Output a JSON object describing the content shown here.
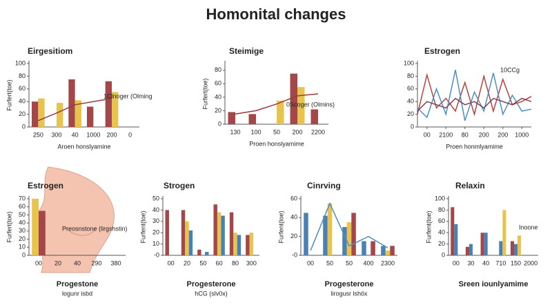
{
  "title": "Homonital changes",
  "chart_data": [
    {
      "type": "bar",
      "title": "Eirgesitiom",
      "ylabel": "Furfert(toe)",
      "xlabel": "Aroen honslyamine",
      "annotation": "1Clnoger (Olming",
      "categories": [
        "250",
        "300",
        "40",
        "1000",
        "200",
        "0"
      ],
      "ylim": [
        0,
        100
      ],
      "yticks": [
        0,
        20,
        40,
        60,
        80,
        100
      ],
      "series": [
        {
          "color": "#a3474a",
          "values": [
            40,
            null,
            75,
            32,
            72,
            null
          ]
        },
        {
          "color": "#e8c34e",
          "values": [
            45,
            38,
            42,
            null,
            55,
            null
          ]
        },
        {
          "type": "line",
          "color": "#9b3a3a",
          "values": [
            10,
            22,
            35,
            40,
            45,
            null
          ]
        }
      ]
    },
    {
      "type": "bar",
      "title": "Steimige",
      "ylabel": "Furfert(toe)",
      "xlabel": "Proen honslyamime",
      "annotation": "0Scoger (Olmins)",
      "categories": [
        "130",
        "100",
        "50",
        "200",
        "2200"
      ],
      "ylim": [
        0,
        90
      ],
      "yticks": [
        0,
        20,
        40,
        60,
        80
      ],
      "series": [
        {
          "color": "#a3474a",
          "values": [
            18,
            15,
            null,
            75,
            22
          ]
        },
        {
          "color": "#e8c34e",
          "values": [
            null,
            null,
            35,
            55,
            null
          ]
        },
        {
          "type": "line",
          "color": "#9b3a3a",
          "values": [
            15,
            20,
            30,
            42,
            45
          ]
        }
      ]
    },
    {
      "type": "line",
      "title": "Estrogen",
      "xlabel": "Proen honmlyamime",
      "annotation": "10CCg",
      "x": [
        0,
        1,
        2,
        3,
        4,
        5,
        6,
        7,
        8,
        9,
        10,
        11,
        12
      ],
      "xlim": [
        0,
        12
      ],
      "xticks": [
        {
          "value": 1,
          "label": "00"
        },
        {
          "value": 3,
          "label": "2100"
        },
        {
          "value": 5,
          "label": "80"
        },
        {
          "value": 7,
          "label": "200"
        },
        {
          "value": 9,
          "label": "200"
        },
        {
          "value": 11,
          "label": "1000"
        }
      ],
      "ylim": [
        0,
        100
      ],
      "yticks": [
        0,
        20,
        40,
        60,
        80,
        100
      ],
      "series": [
        {
          "color": "#b9403f",
          "values": [
            20,
            82,
            30,
            45,
            25,
            70,
            20,
            80,
            25,
            75,
            35,
            40,
            48
          ]
        },
        {
          "color": "#4a8fc4",
          "values": [
            30,
            15,
            60,
            20,
            90,
            10,
            55,
            25,
            85,
            20,
            50,
            25,
            28
          ]
        },
        {
          "color": "#7a3f55",
          "values": [
            25,
            40,
            35,
            30,
            45,
            35,
            40,
            30,
            45,
            40,
            35,
            45,
            40
          ]
        }
      ]
    },
    {
      "type": "bar",
      "title": "Estrogen",
      "ylabel": "Furfert(toe)",
      "annotation": "Preosnstone (lirgshstin)",
      "caption": "Progestone",
      "subcaption": "logunr isbd",
      "categories": [
        "00",
        "20",
        "40",
        "290",
        "380"
      ],
      "ylim": [
        0,
        70
      ],
      "yticks": [
        0,
        10,
        20,
        30,
        40,
        50,
        60,
        70
      ],
      "series": [
        {
          "color": "#e8c34e",
          "values": [
            70,
            null,
            null,
            null,
            null
          ]
        },
        {
          "color": "#a3474a",
          "values": [
            55,
            null,
            null,
            null,
            null
          ]
        }
      ]
    },
    {
      "type": "bar",
      "title": "Strogen",
      "ylabel": "Furfent(toe)",
      "caption": "Progesterone",
      "subcaption": "hCG (slv0x)",
      "categories": [
        "00",
        "20",
        "50",
        "60",
        "80",
        "300"
      ],
      "ylim": [
        0,
        50
      ],
      "yticks": [
        {
          "value": 0,
          "label": "-0"
        },
        10,
        20,
        30,
        40,
        50
      ],
      "series": [
        {
          "color": "#a3474a",
          "values": [
            40,
            40,
            5,
            45,
            38,
            18
          ]
        },
        {
          "color": "#e8c34e",
          "values": [
            null,
            30,
            null,
            38,
            20,
            20
          ]
        },
        {
          "color": "#4a80b4",
          "values": [
            null,
            22,
            3,
            35,
            18,
            null
          ]
        }
      ]
    },
    {
      "type": "bar",
      "title": "Cinrving",
      "ylabel": "Furfent(toe)",
      "caption": "Progesterone",
      "subcaption": "lirogusr lshöx",
      "categories": [
        "00",
        "50",
        "50",
        "400",
        "2300"
      ],
      "ylim": [
        0,
        60
      ],
      "yticks": [
        {
          "value": 0,
          "label": "-0"
        },
        20,
        40,
        60
      ],
      "series": [
        {
          "color": "#4a80b4",
          "values": [
            45,
            42,
            30,
            15,
            10
          ]
        },
        {
          "color": "#e8c34e",
          "values": [
            null,
            55,
            35,
            null,
            5
          ]
        },
        {
          "color": "#a3474a",
          "values": [
            null,
            null,
            45,
            15,
            10
          ]
        },
        {
          "type": "line",
          "color": "#4a8fc4",
          "values": [
            5,
            55,
            10,
            20,
            8
          ]
        }
      ]
    },
    {
      "type": "bar",
      "title": "Relaxin",
      "ylabel": "Furfent(toe)",
      "annotation": "Inoone",
      "caption": "Sreen iounlyamime",
      "categories": [
        "00",
        "30",
        "40",
        "710",
        "150",
        "2000"
      ],
      "ylim": [
        0,
        100
      ],
      "yticks": [
        0,
        20,
        40,
        60,
        80,
        100
      ],
      "series": [
        {
          "color": "#a3474a",
          "values": [
            85,
            15,
            40,
            null,
            25,
            null
          ]
        },
        {
          "color": "#4a80b4",
          "values": [
            55,
            20,
            40,
            25,
            20,
            null
          ]
        },
        {
          "color": "#e8c34e",
          "values": [
            null,
            null,
            null,
            80,
            35,
            null
          ]
        }
      ]
    }
  ]
}
